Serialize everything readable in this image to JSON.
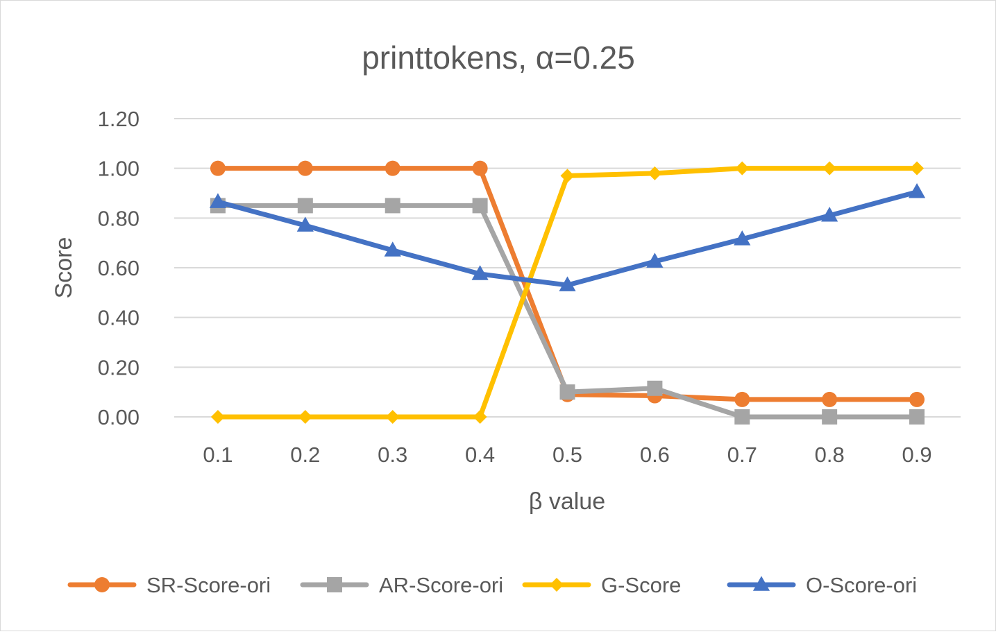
{
  "chart_data": {
    "type": "line",
    "title": "printtokens, α=0.25",
    "xlabel": "β value",
    "ylabel": "Score",
    "categories": [
      "0.1",
      "0.2",
      "0.3",
      "0.4",
      "0.5",
      "0.6",
      "0.7",
      "0.8",
      "0.9"
    ],
    "ylim": [
      0,
      1.2
    ],
    "yticks": [
      "0.00",
      "0.20",
      "0.40",
      "0.60",
      "0.80",
      "1.00",
      "1.20"
    ],
    "grid": "horizontal",
    "legend_position": "bottom",
    "series": [
      {
        "name": "SR-Score-ori",
        "color": "#ED7D31",
        "marker": "circle",
        "values": [
          1.0,
          1.0,
          1.0,
          1.0,
          0.09,
          0.085,
          0.07,
          0.07,
          0.07
        ]
      },
      {
        "name": "AR-Score-ori",
        "color": "#A5A5A5",
        "marker": "square",
        "values": [
          0.85,
          0.85,
          0.85,
          0.85,
          0.1,
          0.115,
          0.0,
          0.0,
          0.0
        ]
      },
      {
        "name": "G-Score",
        "color": "#FFC000",
        "marker": "diamond",
        "values": [
          0.0,
          0.0,
          0.0,
          0.0,
          0.97,
          0.98,
          1.0,
          1.0,
          1.0
        ]
      },
      {
        "name": "O-Score-ori",
        "color": "#4472C4",
        "marker": "triangle",
        "values": [
          0.865,
          0.77,
          0.67,
          0.575,
          0.53,
          0.625,
          0.715,
          0.81,
          0.905
        ]
      }
    ]
  }
}
